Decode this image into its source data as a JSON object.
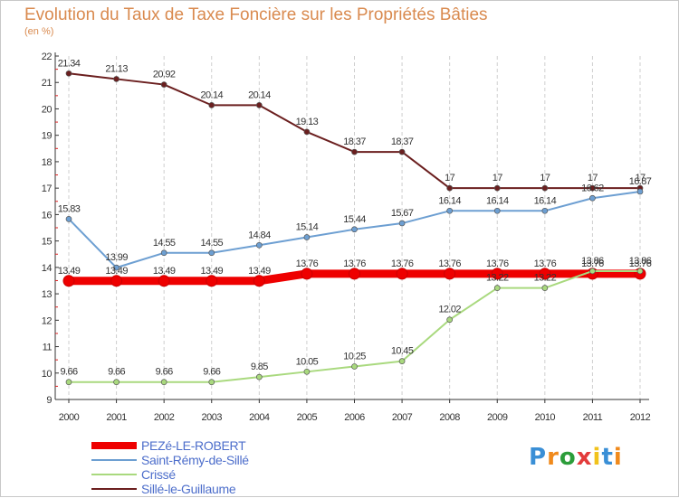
{
  "chart_data": {
    "type": "line",
    "title": "Evolution du Taux de Taxe Foncière sur les Propriétés Bâties",
    "subtitle": "(en %)",
    "xlabel": "",
    "ylabel": "(en %)",
    "ylim": [
      9,
      22
    ],
    "yticks": [
      "9",
      "10",
      "11",
      "12",
      "13",
      "14",
      "15",
      "16",
      "17",
      "18",
      "19",
      "20",
      "21",
      "22"
    ],
    "x": [
      "2000",
      "2001",
      "2002",
      "2003",
      "2004",
      "2005",
      "2006",
      "2007",
      "2008",
      "2009",
      "2010",
      "2011",
      "2012"
    ],
    "grid": "vertical dashed",
    "series": [
      {
        "name": "Sillé-le-Guillaume",
        "color": "#6b1f1f",
        "values": [
          21.34,
          21.13,
          20.92,
          20.14,
          20.14,
          19.13,
          18.37,
          18.37,
          17,
          17,
          17,
          17,
          17
        ],
        "labels": [
          "21.34",
          "21.13",
          "20.92",
          "20.14",
          "20.14",
          "19.13",
          "18.37",
          "18.37",
          "17",
          "17",
          "17",
          "17",
          "17"
        ]
      },
      {
        "name": "Saint-Rémy-de-Sillé",
        "color": "#6d9fd2",
        "values": [
          15.83,
          13.99,
          14.55,
          14.55,
          14.84,
          15.14,
          15.44,
          15.67,
          16.14,
          16.14,
          16.14,
          16.62,
          16.87
        ],
        "labels": [
          "15.83",
          "13.99",
          "14.55",
          "14.55",
          "14.84",
          "15.14",
          "15.44",
          "15.67",
          "16.14",
          "16.14",
          "16.14",
          "16.62",
          "16.87"
        ]
      },
      {
        "name": "PEZé-LE-ROBERT",
        "color": "#ee0000",
        "values": [
          13.49,
          13.49,
          13.49,
          13.49,
          13.49,
          13.76,
          13.76,
          13.76,
          13.76,
          13.76,
          13.76,
          13.76,
          13.76
        ],
        "labels": [
          "13.49",
          "13.49",
          "13.49",
          "13.49",
          "13.49",
          "13.76",
          "13.76",
          "13.76",
          "13.76",
          "13.76",
          "13.76",
          "13.76",
          "13.76"
        ]
      },
      {
        "name": "Crissé",
        "color": "#a9d97e",
        "values": [
          9.66,
          9.66,
          9.66,
          9.66,
          9.85,
          10.05,
          10.25,
          10.45,
          12.02,
          13.22,
          13.22,
          13.86,
          13.86
        ],
        "labels": [
          "9.66",
          "9.66",
          "9.66",
          "9.66",
          "9.85",
          "10.05",
          "10.25",
          "10.45",
          "12.02",
          "13.22",
          "13.22",
          "13.86",
          "13.86"
        ]
      }
    ],
    "legend": [
      "PEZé-LE-ROBERT",
      "Saint-Rémy-de-Sillé",
      "Crissé",
      "Sillé-le-Guillaume"
    ],
    "legend_position": "bottom-left"
  },
  "legend": {
    "items": [
      {
        "label": "PEZé-LE-ROBERT",
        "color": "#ee0000"
      },
      {
        "label": "Saint-Rémy-de-Sillé",
        "color": "#6d9fd2"
      },
      {
        "label": "Crissé",
        "color": "#a9d97e"
      },
      {
        "label": "Sillé-le-Guillaume",
        "color": "#6b1f1f"
      }
    ]
  },
  "logo": {
    "letters": [
      "P",
      "r",
      "o",
      "x",
      "i",
      "t",
      "i"
    ],
    "colors": [
      "#3a8fd6",
      "#f08a1c",
      "#2c9d3a",
      "#e33b3b",
      "#f1c21b",
      "#3a8fd6",
      "#f08a1c"
    ]
  }
}
